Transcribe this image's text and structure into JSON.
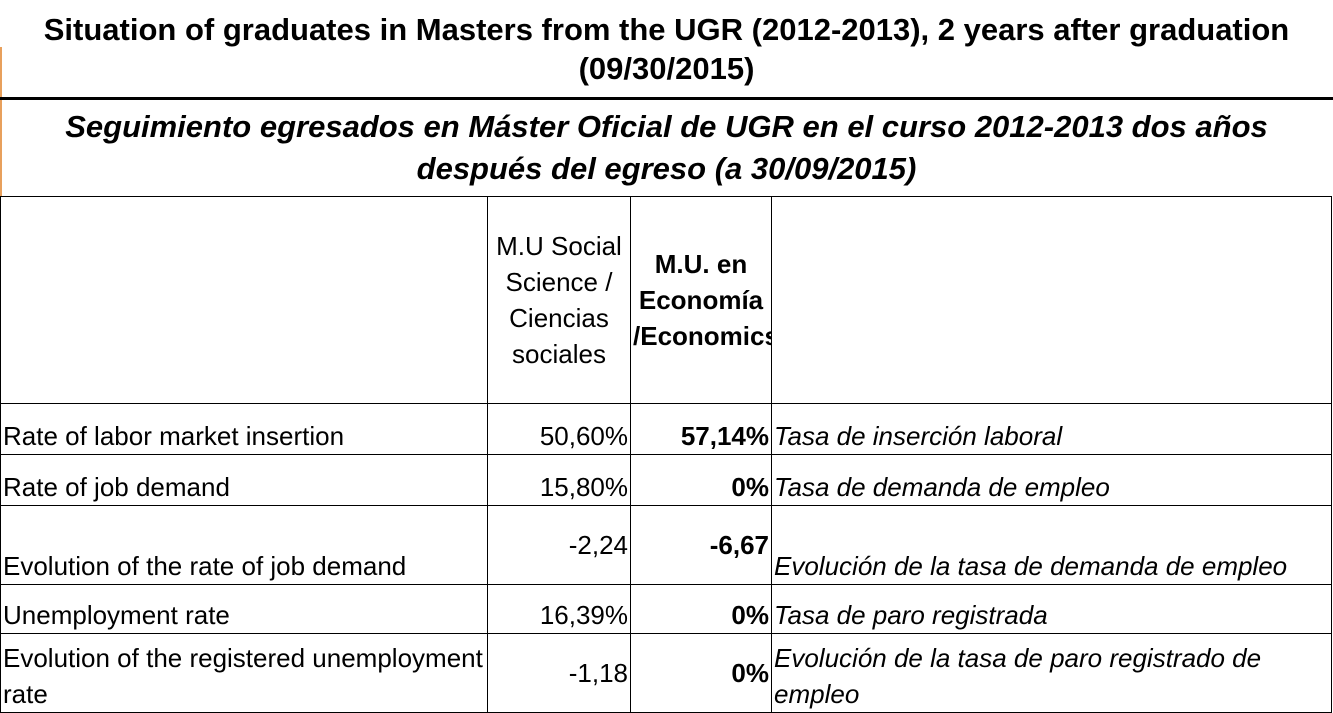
{
  "title_en": "Situation of graduates in Masters from the UGR (2012-2013), 2 years after graduation (09/30/2015)",
  "title_es": "Seguimiento egresados en Máster Oficial de UGR en el curso 2012-2013 dos años después del egreso (a 30/09/2015)",
  "header": {
    "col1": "",
    "col2": "M.U Social Science / Ciencias sociales",
    "col3": "M.U. en Economía /Economics",
    "col4": ""
  },
  "rows": [
    {
      "label_en": "Rate of labor market insertion",
      "social": "50,60%",
      "economics": "57,14%",
      "label_es": "Tasa de inserción laboral"
    },
    {
      "label_en": "Rate of job demand",
      "social": "15,80%",
      "economics": "0%",
      "label_es": "Tasa de demanda de empleo"
    },
    {
      "label_en": "Evolution of the rate of job demand",
      "social": "-2,24",
      "economics": "-6,67",
      "label_es": "Evolución de la tasa de demanda de empleo"
    },
    {
      "label_en": "Unemployment rate",
      "social": "16,39%",
      "economics": "0%",
      "label_es": "Tasa de paro registrada"
    },
    {
      "label_en": "Evolution of the registered unemployment rate",
      "social": "-1,18",
      "economics": "0%",
      "label_es": "Evolución de la tasa de paro registrado de empleo"
    }
  ],
  "colors": {
    "accent_line": "#e8a05c",
    "border": "#000000"
  }
}
